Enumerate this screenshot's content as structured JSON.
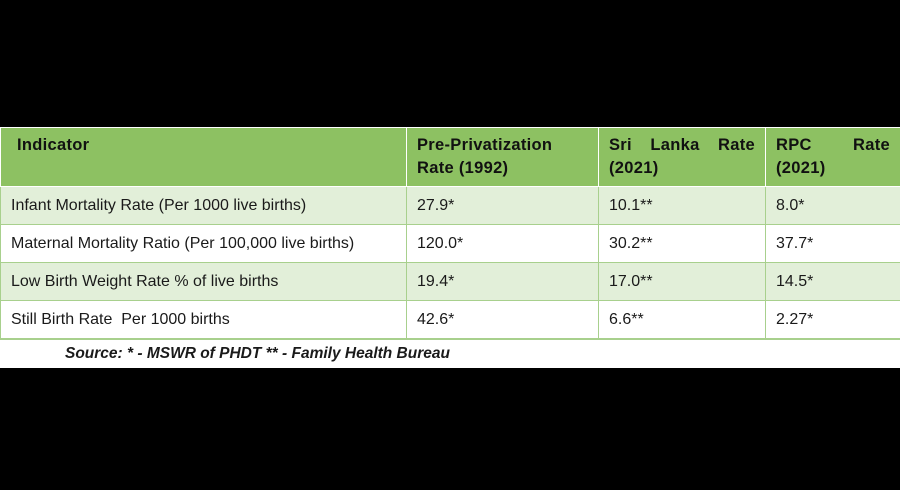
{
  "table": {
    "headers": [
      {
        "line1": "Indicator",
        "line2": ""
      },
      {
        "line1": "Pre-Privatization",
        "line2": "Rate (1992)"
      },
      {
        "line1": "Sri Lanka Rate",
        "line2": "(2021)"
      },
      {
        "line1": "RPC Rate",
        "line2": "(2021)"
      }
    ],
    "rows": [
      [
        "Infant Mortality Rate (Per 1000 live births)",
        "27.9*",
        "10.1**",
        "8.0*"
      ],
      [
        "Maternal Mortality Ratio (Per 100,000 live births)",
        "120.0*",
        "30.2**",
        "37.7*"
      ],
      [
        "Low Birth Weight Rate % of live births",
        "19.4*",
        "17.0**",
        "14.5*"
      ],
      [
        "Still Birth Rate  Per 1000 births",
        "42.6*",
        "6.6**",
        "2.27*"
      ]
    ]
  },
  "source": "Source:  * - MSWR of PHDT ** - Family Health Bureau",
  "colors": {
    "background": "#000000",
    "header_fill": "#8dc162",
    "row_band": "#e2efd9",
    "border": "#a8d08d"
  }
}
